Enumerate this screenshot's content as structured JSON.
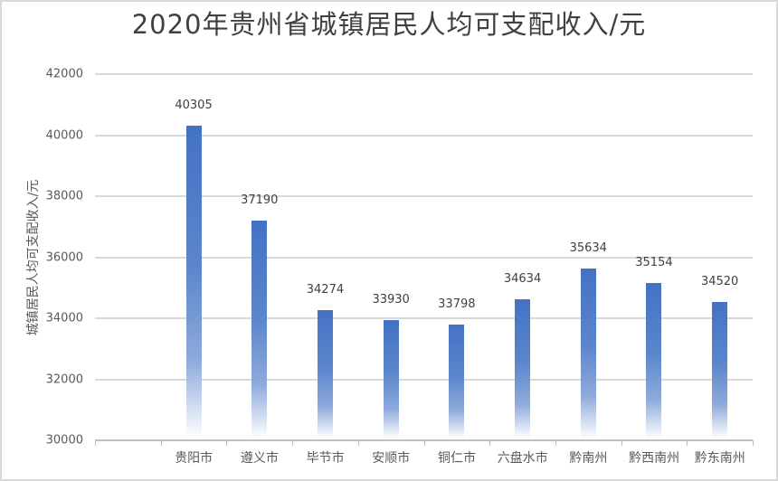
{
  "chart_data": {
    "type": "bar",
    "title": "2020年贵州省城镇居民人均可支配收入/元",
    "xlabel": "",
    "ylabel": "城镇居民人均可支配收入/元",
    "categories": [
      "",
      "贵阳市",
      "遵义市",
      "毕节市",
      "安顺市",
      "铜仁市",
      "六盘水市",
      "黔南州",
      "黔西南州",
      "黔东南州"
    ],
    "values": [
      null,
      40305,
      37190,
      34274,
      33930,
      33798,
      34634,
      35634,
      35154,
      34520
    ],
    "ylim": [
      30000,
      42000
    ],
    "yticks": [
      30000,
      32000,
      34000,
      36000,
      38000,
      40000,
      42000
    ],
    "grid": true,
    "legend": "none",
    "bar_color": "#4472c4"
  }
}
